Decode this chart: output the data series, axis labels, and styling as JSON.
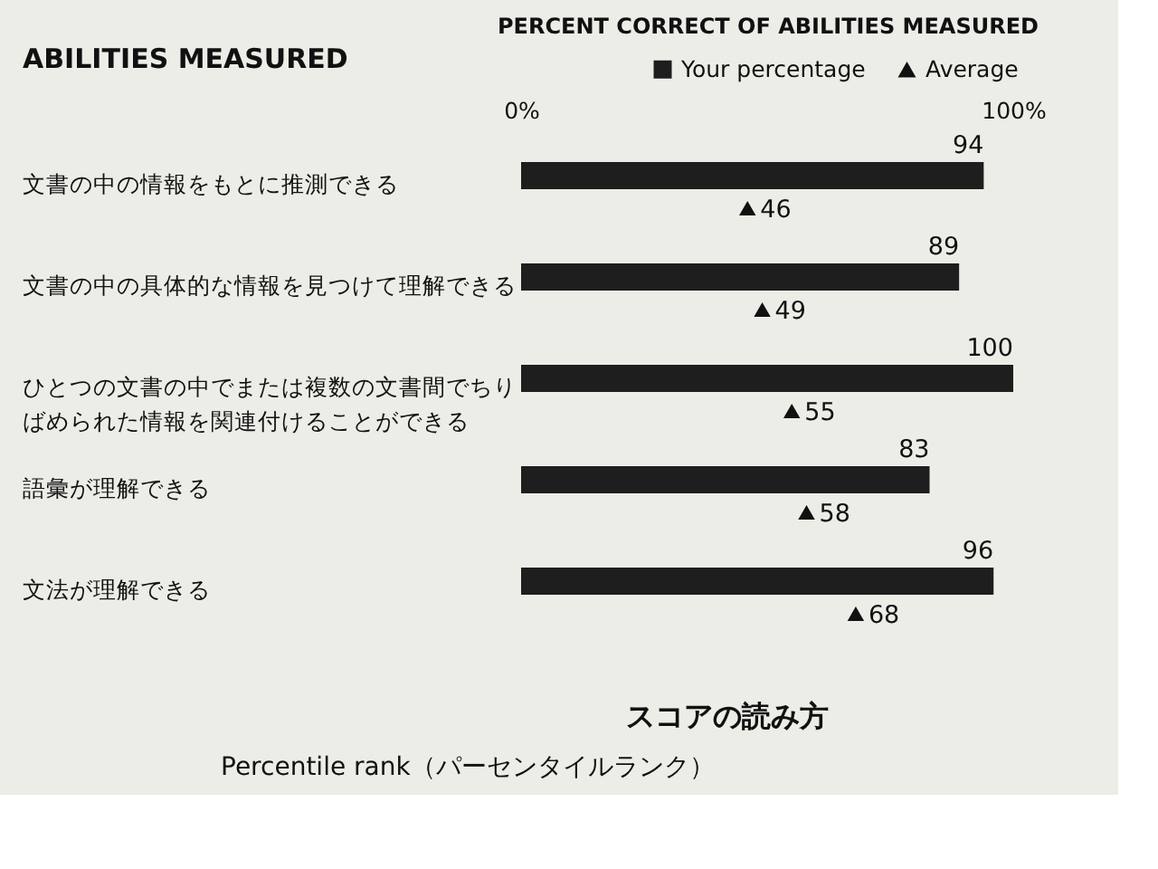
{
  "chart_data": {
    "type": "bar",
    "orientation": "horizontal",
    "xlabel": "PERCENT CORRECT OF ABILITIES MEASURED",
    "ylabel": "ABILITIES MEASURED",
    "categories": [
      "文書の中の情報をもとに推測できる",
      "文書の中の具体的な情報を見つけて理解できる",
      "ひとつの文書の中でまたは複数の文書間でちりばめられた情報を関連付けることができる",
      "語彙が理解できる",
      "文法が理解できる"
    ],
    "series": [
      {
        "name": "Your percentage",
        "color": "#1e1e1e",
        "values": [
          94,
          89,
          100,
          83,
          96
        ]
      },
      {
        "name": "Average",
        "type": "scatter",
        "marker": "triangle",
        "color": "#111111",
        "values": [
          46,
          49,
          55,
          58,
          68
        ]
      }
    ],
    "xlim": [
      0,
      100
    ],
    "xticks": [
      {
        "value": 0,
        "label": "0%"
      },
      {
        "value": 100,
        "label": "100%"
      }
    ],
    "data_labels": true,
    "grid": false,
    "legend": "top right",
    "annotations": [
      "スコアの読み方",
      "Percentile rank（パーセンタイルランク）"
    ]
  }
}
